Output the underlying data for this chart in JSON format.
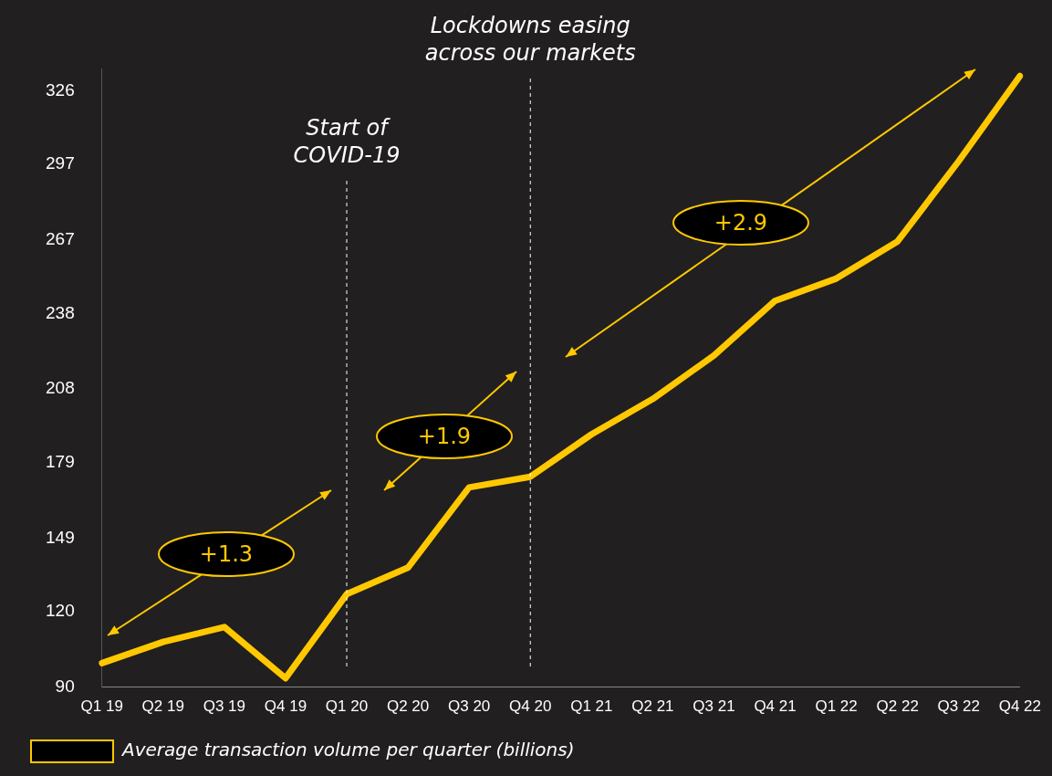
{
  "chart_data": {
    "type": "line",
    "categories": [
      "Q1 19",
      "Q2 19",
      "Q3 19",
      "Q4 19",
      "Q1 20",
      "Q2 20",
      "Q3 20",
      "Q4 20",
      "Q1 21",
      "Q2 21",
      "Q3 21",
      "Q4 21",
      "Q1 22",
      "Q2 22",
      "Q3 22",
      "Q4 22"
    ],
    "series": [
      {
        "name": "Average transaction volume per quarter (billions)",
        "color": "#ffc800",
        "values": [
          99.5,
          107.9,
          113.8,
          93.5,
          126.8,
          137.3,
          169.1,
          173.3,
          190.1,
          204.1,
          221.3,
          243,
          251.8,
          266.5,
          298.3,
          332
        ]
      }
    ],
    "ylim": [
      90,
      335
    ],
    "yticks": [
      90,
      120,
      149,
      179,
      208,
      238,
      267,
      297,
      326
    ],
    "grid": false,
    "legend": "bottom left",
    "marker": "none",
    "line_style": "solid",
    "ref_lines": [
      {
        "axis": "x",
        "value": "Q1 20",
        "label": "Start of COVID-19",
        "color": "#ffffff",
        "line_style": "dashed"
      },
      {
        "axis": "x",
        "value": "Q4 20",
        "label": "Lockdowns easing across our markets",
        "color": "#ffffff",
        "line_style": "dashed"
      }
    ],
    "annotations": [
      "+1.3",
      "+1.9",
      "+2.9"
    ]
  }
}
